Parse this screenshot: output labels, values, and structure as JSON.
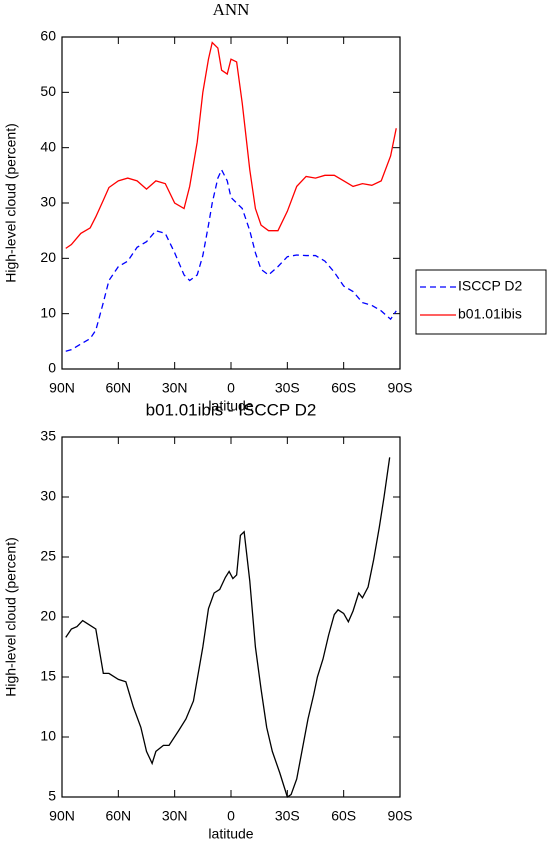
{
  "chart_data": [
    {
      "type": "line",
      "title": "ANN",
      "y_label": "High-level cloud (percent)",
      "x_label": "latitude",
      "xlim": [
        90,
        -90
      ],
      "xticks": [
        {
          "value": 90,
          "label": "90N"
        },
        {
          "value": 60,
          "label": "60N"
        },
        {
          "value": 30,
          "label": "30N"
        },
        0,
        {
          "value": -30,
          "label": "30S"
        },
        {
          "value": -60,
          "label": "60S"
        },
        {
          "value": -90,
          "label": "90S"
        }
      ],
      "ylim": [
        0,
        60
      ],
      "yticks": [
        0,
        10,
        20,
        30,
        40,
        50,
        60
      ],
      "legend": "right",
      "x": [
        88,
        85,
        80,
        75,
        72,
        68,
        65,
        60,
        55,
        50,
        45,
        40,
        35,
        30,
        25,
        22,
        18,
        15,
        12,
        10,
        7,
        5,
        2,
        0,
        -3,
        -6,
        -10,
        -13,
        -16,
        -20,
        -25,
        -30,
        -35,
        -40,
        -45,
        -50,
        -55,
        -60,
        -65,
        -70,
        -75,
        -80,
        -85,
        -88
      ],
      "series": [
        {
          "name": "ISCCP D2",
          "color": "#0000ff",
          "linestyle": "dashed",
          "values": [
            3.2,
            3.5,
            4.5,
            5.5,
            7,
            12,
            16,
            18.5,
            19.5,
            22,
            23,
            25,
            24.5,
            21,
            17,
            16,
            17,
            20.5,
            26,
            30,
            34.5,
            36,
            34,
            31,
            30,
            29,
            25,
            21,
            18,
            17,
            18.5,
            20.3,
            20.6,
            20.5,
            20.5,
            19.5,
            17.5,
            15,
            14,
            12,
            11.5,
            10.5,
            9,
            10.5
          ]
        },
        {
          "name": "b01.01ibis",
          "color": "#ff0000",
          "linestyle": "solid",
          "values": [
            21.8,
            22.5,
            24.5,
            25.5,
            27.5,
            30.5,
            32.8,
            34,
            34.5,
            34,
            32.5,
            34,
            33.5,
            30,
            29,
            33,
            41,
            50,
            56,
            59,
            58,
            54,
            53.3,
            56,
            55.5,
            48,
            36,
            29,
            26,
            25,
            25,
            28.5,
            33,
            34.8,
            34.5,
            35,
            35,
            34,
            33,
            33.5,
            33.2,
            34,
            38.5,
            43.5
          ]
        }
      ]
    },
    {
      "type": "line",
      "title": "b01.01ibis - ISCCP D2",
      "y_label": "High-level cloud (percent)",
      "x_label": "latitude",
      "xlim": [
        90,
        -90
      ],
      "xticks": [
        {
          "value": 90,
          "label": "90N"
        },
        {
          "value": 60,
          "label": "60N"
        },
        {
          "value": 30,
          "label": "30N"
        },
        0,
        {
          "value": -30,
          "label": "30S"
        },
        {
          "value": -60,
          "label": "60S"
        },
        {
          "value": -90,
          "label": "90S"
        }
      ],
      "ylim": [
        5,
        35
      ],
      "yticks": [
        5,
        10,
        15,
        20,
        25,
        30,
        35
      ],
      "x": [
        88,
        85,
        82,
        79,
        76,
        72,
        68,
        65,
        60,
        56,
        52,
        48,
        45,
        42,
        40,
        36,
        33,
        28,
        24,
        20,
        15,
        12,
        9,
        6,
        3,
        1,
        -1,
        -3,
        -5,
        -7,
        -10,
        -13,
        -16,
        -19,
        -22,
        -26,
        -28,
        -30,
        -32,
        -35,
        -38,
        -41,
        -44,
        -46,
        -49,
        -52,
        -55,
        -57,
        -60,
        -62.5,
        -65,
        -68,
        -70,
        -73,
        -76,
        -79,
        -81.5,
        -84.5
      ],
      "series": [
        {
          "name": "b01.01ibis - ISCCP D2",
          "color": "#000000",
          "linestyle": "solid",
          "values": [
            18.3,
            19,
            19.2,
            19.7,
            19.4,
            19,
            15.3,
            15.3,
            14.8,
            14.6,
            12.5,
            10.8,
            8.8,
            7.8,
            8.8,
            9.3,
            9.3,
            10.5,
            11.5,
            13,
            17.5,
            20.7,
            22,
            22.3,
            23.3,
            23.8,
            23.2,
            23.5,
            26.8,
            27.1,
            23,
            17.5,
            14,
            10.8,
            8.8,
            7,
            6,
            5,
            5.2,
            6.5,
            9,
            11.5,
            13.5,
            15,
            16.5,
            18.5,
            20.2,
            20.6,
            20.3,
            19.6,
            20.5,
            22,
            21.6,
            22.5,
            24.8,
            27.5,
            30,
            33.3
          ]
        }
      ]
    }
  ]
}
